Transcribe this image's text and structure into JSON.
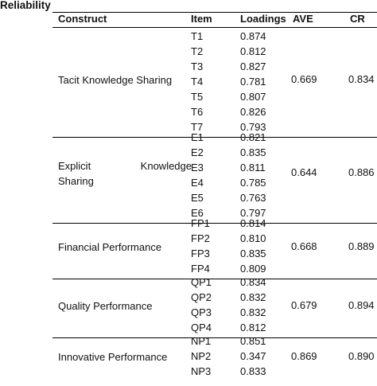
{
  "caption": "Reliability",
  "headers": {
    "construct": "Construct",
    "item": "Item",
    "loadings": "Loadings",
    "ave": "AVE",
    "cr": "CR"
  },
  "groups": [
    {
      "construct": "Tacit Knowledge Sharing",
      "ave": "0.669",
      "cr": "0.834",
      "rows": [
        {
          "item": "T1",
          "loading": "0.874"
        },
        {
          "item": "T2",
          "loading": "0.812"
        },
        {
          "item": "T3",
          "loading": "0.827"
        },
        {
          "item": "T4",
          "loading": "0.781"
        },
        {
          "item": "T5",
          "loading": "0.807"
        },
        {
          "item": "T6",
          "loading": "0.826"
        },
        {
          "item": "T7",
          "loading": "0.793"
        }
      ]
    },
    {
      "construct_line1_left": "Explicit",
      "construct_line1_right": "Knowledge",
      "construct_line2": "Sharing",
      "ave": "0.644",
      "cr": "0.886",
      "rows": [
        {
          "item": "E1",
          "loading": "0.821"
        },
        {
          "item": "E2",
          "loading": "0.835"
        },
        {
          "item": "E3",
          "loading": "0.811"
        },
        {
          "item": "E4",
          "loading": "0.785"
        },
        {
          "item": "E5",
          "loading": "0.763"
        },
        {
          "item": "E6",
          "loading": "0.797"
        }
      ]
    },
    {
      "construct": "Financial Performance",
      "ave": "0.668",
      "cr": "0.889",
      "rows": [
        {
          "item": "FP1",
          "loading": "0.814"
        },
        {
          "item": "FP2",
          "loading": "0.810"
        },
        {
          "item": "FP3",
          "loading": "0.835"
        },
        {
          "item": "FP4",
          "loading": "0.809"
        }
      ]
    },
    {
      "construct": "Quality Performance",
      "ave": "0.679",
      "cr": "0.894",
      "rows": [
        {
          "item": "QP1",
          "loading": "0.834"
        },
        {
          "item": "QP2",
          "loading": "0.832"
        },
        {
          "item": "QP3",
          "loading": "0.832"
        },
        {
          "item": "QP4",
          "loading": "0.812"
        }
      ]
    },
    {
      "construct": "Innovative Performance",
      "ave": "0.869",
      "cr": "0.890",
      "rows": [
        {
          "item": "NP1",
          "loading": "0.851"
        },
        {
          "item": "NP2",
          "loading": "0.347"
        },
        {
          "item": "NP3",
          "loading": "0.833"
        }
      ]
    }
  ]
}
